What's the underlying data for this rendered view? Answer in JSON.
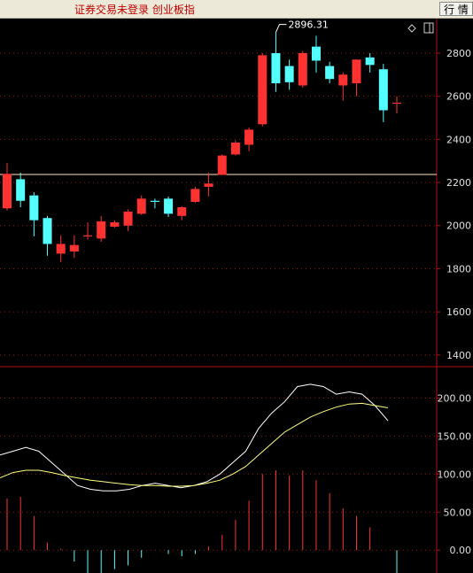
{
  "header": {
    "status_text": "证券交易未登录  创业板指",
    "quote_button": "行 情"
  },
  "colors": {
    "background": "#000000",
    "up": "#ff3232",
    "down": "#54ffff",
    "axis": "#b01010",
    "grid": "#8b1a1a",
    "price_line": "#ffe8c0",
    "k_line": "#ffffff",
    "d_line": "#ffff80"
  },
  "icons": [
    "diamond-icon",
    "panel-toggle-icon"
  ],
  "price_panel": {
    "y_ticks": [
      "2800",
      "2600",
      "2400",
      "2200",
      "2000",
      "1800",
      "1600",
      "1400"
    ],
    "y_tick_values": [
      2800,
      2600,
      2400,
      2200,
      2000,
      1800,
      1600,
      1400
    ],
    "high_label": "2896.31",
    "current_price_line": 2237
  },
  "indicator_panel": {
    "y_ticks": [
      "200.00",
      "150.00",
      "100.00",
      "50.00",
      "0.00"
    ],
    "y_tick_values": [
      200,
      150,
      100,
      50,
      0
    ]
  },
  "chart_data": [
    {
      "type": "candlestick",
      "title": "创业板指",
      "ylim": [
        1350,
        2960
      ],
      "candles": [
        {
          "o": 2080,
          "h": 2290,
          "l": 2070,
          "c": 2240
        },
        {
          "o": 2215,
          "h": 2245,
          "l": 2085,
          "c": 2115
        },
        {
          "o": 2140,
          "h": 2155,
          "l": 1950,
          "c": 2025
        },
        {
          "o": 2035,
          "h": 2045,
          "l": 1860,
          "c": 1915
        },
        {
          "o": 1870,
          "h": 1955,
          "l": 1830,
          "c": 1915
        },
        {
          "o": 1880,
          "h": 1955,
          "l": 1850,
          "c": 1910
        },
        {
          "o": 1950,
          "h": 2015,
          "l": 1935,
          "c": 1955
        },
        {
          "o": 1940,
          "h": 2045,
          "l": 1925,
          "c": 2020
        },
        {
          "o": 1995,
          "h": 2025,
          "l": 1990,
          "c": 2015
        },
        {
          "o": 2000,
          "h": 2075,
          "l": 1975,
          "c": 2065
        },
        {
          "o": 2055,
          "h": 2140,
          "l": 2050,
          "c": 2125
        },
        {
          "o": 2115,
          "h": 2125,
          "l": 2080,
          "c": 2110
        },
        {
          "o": 2125,
          "h": 2135,
          "l": 2040,
          "c": 2055
        },
        {
          "o": 2045,
          "h": 2090,
          "l": 2025,
          "c": 2085
        },
        {
          "o": 2110,
          "h": 2180,
          "l": 2105,
          "c": 2170
        },
        {
          "o": 2180,
          "h": 2245,
          "l": 2135,
          "c": 2195
        },
        {
          "o": 2235,
          "h": 2330,
          "l": 2235,
          "c": 2325
        },
        {
          "o": 2330,
          "h": 2395,
          "l": 2325,
          "c": 2385
        },
        {
          "o": 2375,
          "h": 2455,
          "l": 2345,
          "c": 2445
        },
        {
          "o": 2470,
          "h": 2800,
          "l": 2460,
          "c": 2790
        },
        {
          "o": 2800,
          "h": 2896,
          "l": 2620,
          "c": 2660
        },
        {
          "o": 2740,
          "h": 2770,
          "l": 2630,
          "c": 2665
        },
        {
          "o": 2650,
          "h": 2810,
          "l": 2640,
          "c": 2800
        },
        {
          "o": 2830,
          "h": 2880,
          "l": 2710,
          "c": 2765
        },
        {
          "o": 2740,
          "h": 2760,
          "l": 2660,
          "c": 2680
        },
        {
          "o": 2650,
          "h": 2710,
          "l": 2580,
          "c": 2700
        },
        {
          "o": 2660,
          "h": 2770,
          "l": 2600,
          "c": 2770
        },
        {
          "o": 2780,
          "h": 2800,
          "l": 2710,
          "c": 2745
        },
        {
          "o": 2725,
          "h": 2750,
          "l": 2480,
          "c": 2535
        },
        {
          "o": 2565,
          "h": 2600,
          "l": 2520,
          "c": 2570
        }
      ]
    },
    {
      "type": "line",
      "ylim": [
        -30,
        240
      ],
      "series": [
        {
          "values": [
            125,
            130,
            135,
            130,
            115,
            100,
            85,
            80,
            78,
            78,
            80,
            85,
            88,
            85,
            82,
            85,
            90,
            100,
            115,
            130,
            160,
            180,
            195,
            215,
            218,
            215,
            205,
            208,
            205,
            190,
            170
          ]
        },
        {
          "values": [
            95,
            102,
            105,
            105,
            102,
            98,
            95,
            92,
            90,
            88,
            86,
            85,
            85,
            84,
            84,
            85,
            88,
            92,
            100,
            110,
            125,
            140,
            155,
            165,
            175,
            182,
            188,
            192,
            193,
            190,
            187
          ]
        }
      ]
    },
    {
      "type": "bar",
      "ylim": [
        -30,
        240
      ],
      "values": [
        68,
        70,
        45,
        10,
        2,
        -15,
        -32,
        -30,
        -25,
        -20,
        -10,
        0,
        -5,
        -8,
        -5,
        5,
        20,
        40,
        65,
        100,
        105,
        98,
        105,
        92,
        75,
        55,
        45,
        30,
        0,
        -35
      ]
    }
  ]
}
